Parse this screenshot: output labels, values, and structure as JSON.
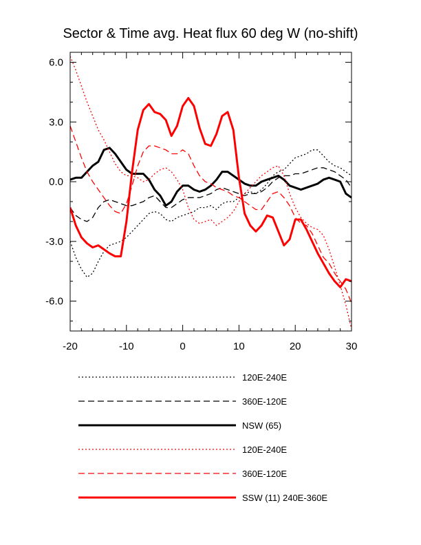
{
  "chart_data": {
    "type": "line",
    "title": "Sector & Time avg. Heat flux 60 deg W (no-shift)",
    "xlabel": "",
    "ylabel": "",
    "xlim": [
      -20,
      30
    ],
    "ylim": [
      -7.5,
      6.5
    ],
    "xticks": [
      -20,
      -10,
      0,
      10,
      20,
      30
    ],
    "xtick_labels": [
      "-20",
      "-10",
      "0",
      "10",
      "20",
      "30"
    ],
    "yticks": [
      6,
      3,
      0,
      -3,
      -6
    ],
    "ytick_labels": [
      "6.0",
      "3.0",
      "0.0",
      "-3.0",
      "-6.0"
    ],
    "grid": false,
    "legend_position": "bottom",
    "series": [
      {
        "name": "120E-240E",
        "color": "#000000",
        "dash": "dotted",
        "thick": false,
        "x": [
          -20,
          -19,
          -18,
          -17,
          -16,
          -15,
          -14,
          -13,
          -12,
          -11,
          -10,
          -9,
          -8,
          -7,
          -6,
          -5,
          -4,
          -3,
          -2,
          -1,
          0,
          1,
          2,
          3,
          4,
          5,
          6,
          7,
          8,
          9,
          10,
          11,
          12,
          13,
          14,
          15,
          16,
          17,
          18,
          19,
          20,
          21,
          22,
          23,
          24,
          25,
          26,
          27,
          28,
          29,
          30
        ],
        "y": [
          -3.0,
          -3.8,
          -4.4,
          -4.8,
          -4.6,
          -4.0,
          -3.5,
          -3.2,
          -3.1,
          -3.0,
          -2.8,
          -2.5,
          -2.2,
          -1.9,
          -1.6,
          -1.5,
          -1.6,
          -1.9,
          -2.0,
          -1.8,
          -1.7,
          -1.6,
          -1.5,
          -1.3,
          -1.3,
          -1.2,
          -1.4,
          -1.1,
          -1.0,
          -1.0,
          -0.8,
          -0.6,
          -0.5,
          -0.6,
          -0.4,
          -0.1,
          0.3,
          0.5,
          0.6,
          0.9,
          1.2,
          1.3,
          1.4,
          1.6,
          1.6,
          1.3,
          1.0,
          0.8,
          0.7,
          0.5,
          0.3
        ]
      },
      {
        "name": "360E-120E",
        "color": "#000000",
        "dash": "dashed",
        "thick": false,
        "x": [
          -20,
          -19,
          -18,
          -17,
          -16,
          -15,
          -14,
          -13,
          -12,
          -11,
          -10,
          -9,
          -8,
          -7,
          -6,
          -5,
          -4,
          -3,
          -2,
          -1,
          0,
          1,
          2,
          3,
          4,
          5,
          6,
          7,
          8,
          9,
          10,
          11,
          12,
          13,
          14,
          15,
          16,
          17,
          18,
          19,
          20,
          21,
          22,
          23,
          24,
          25,
          26,
          27,
          28,
          29,
          30
        ],
        "y": [
          -1.3,
          -1.7,
          -1.9,
          -2.0,
          -1.8,
          -1.3,
          -1.0,
          -0.9,
          -1.0,
          -1.1,
          -1.2,
          -1.2,
          -1.1,
          -1.0,
          -0.8,
          -0.7,
          -1.0,
          -1.3,
          -1.3,
          -1.1,
          -0.9,
          -0.8,
          -0.8,
          -0.8,
          -0.7,
          -0.6,
          -0.4,
          -0.3,
          -0.4,
          -0.5,
          -0.6,
          -0.7,
          -0.6,
          -0.6,
          -0.5,
          -0.3,
          0.0,
          0.2,
          0.3,
          0.3,
          0.4,
          0.4,
          0.5,
          0.6,
          0.7,
          0.7,
          0.6,
          0.5,
          0.3,
          0.1,
          -0.3
        ]
      },
      {
        "name": "NSW (65)",
        "color": "#000000",
        "dash": "solid",
        "thick": true,
        "x": [
          -20,
          -19,
          -18,
          -17,
          -16,
          -15,
          -14,
          -13,
          -12,
          -11,
          -10,
          -9,
          -8,
          -7,
          -6,
          -5,
          -4,
          -3,
          -2,
          -1,
          0,
          1,
          2,
          3,
          4,
          5,
          6,
          7,
          8,
          9,
          10,
          11,
          12,
          13,
          14,
          15,
          16,
          17,
          18,
          19,
          20,
          21,
          22,
          23,
          24,
          25,
          26,
          27,
          28,
          29,
          30
        ],
        "y": [
          0.1,
          0.2,
          0.2,
          0.5,
          0.8,
          1.0,
          1.6,
          1.7,
          1.4,
          1.0,
          0.6,
          0.4,
          0.4,
          0.4,
          0.1,
          -0.4,
          -0.7,
          -1.2,
          -1.0,
          -0.5,
          -0.2,
          -0.2,
          -0.4,
          -0.5,
          -0.4,
          -0.2,
          0.1,
          0.5,
          0.5,
          0.3,
          0.1,
          -0.1,
          -0.2,
          -0.2,
          0.0,
          0.1,
          0.2,
          0.3,
          0.1,
          -0.2,
          -0.3,
          -0.4,
          -0.3,
          -0.2,
          -0.1,
          0.1,
          0.2,
          0.1,
          0.0,
          -0.6,
          -0.8
        ]
      },
      {
        "name": "120E-240E",
        "color": "#ff0000",
        "dash": "dotted",
        "thick": false,
        "x": [
          -20,
          -19,
          -18,
          -17,
          -16,
          -15,
          -14,
          -13,
          -12,
          -11,
          -10,
          -9,
          -8,
          -7,
          -6,
          -5,
          -4,
          -3,
          -2,
          -1,
          0,
          1,
          2,
          3,
          4,
          5,
          6,
          7,
          8,
          9,
          10,
          11,
          12,
          13,
          14,
          15,
          16,
          17,
          18,
          19,
          20,
          21,
          22,
          23,
          24,
          25,
          26,
          27,
          28,
          29,
          30
        ],
        "y": [
          6.3,
          5.6,
          4.8,
          4.0,
          3.3,
          2.6,
          2.1,
          1.5,
          0.9,
          0.5,
          0.3,
          0.3,
          0.2,
          0.0,
          0.1,
          0.4,
          0.6,
          0.7,
          0.5,
          0.1,
          -0.4,
          -1.3,
          -1.9,
          -2.1,
          -2.0,
          -1.9,
          -2.2,
          -2.0,
          -1.8,
          -1.5,
          -1.0,
          -0.6,
          -0.3,
          0.0,
          0.3,
          0.5,
          0.7,
          0.8,
          0.3,
          -0.6,
          -1.3,
          -1.8,
          -2.1,
          -2.3,
          -2.4,
          -2.7,
          -3.4,
          -4.3,
          -5.2,
          -6.2,
          -7.4
        ]
      },
      {
        "name": "360E-120E",
        "color": "#ff0000",
        "dash": "dashed",
        "thick": false,
        "x": [
          -20,
          -19,
          -18,
          -17,
          -16,
          -15,
          -14,
          -13,
          -12,
          -11,
          -10,
          -9,
          -8,
          -7,
          -6,
          -5,
          -4,
          -3,
          -2,
          -1,
          0,
          1,
          2,
          3,
          4,
          5,
          6,
          7,
          8,
          9,
          10,
          11,
          12,
          13,
          14,
          15,
          16,
          17,
          18,
          19,
          20,
          21,
          22,
          23,
          24,
          25,
          26,
          27,
          28,
          29,
          30
        ],
        "y": [
          2.8,
          2.0,
          1.2,
          0.5,
          0.0,
          -0.4,
          -0.8,
          -1.2,
          -1.5,
          -1.6,
          -1.1,
          -0.2,
          0.8,
          1.5,
          1.8,
          1.8,
          1.7,
          1.6,
          1.4,
          1.4,
          1.6,
          1.4,
          0.8,
          0.3,
          0.0,
          -0.1,
          -0.3,
          -0.4,
          -0.5,
          -0.7,
          -0.8,
          -1.0,
          -1.2,
          -1.4,
          -1.4,
          -1.0,
          -0.6,
          -0.5,
          -0.8,
          -1.2,
          -1.8,
          -2.1,
          -2.2,
          -2.6,
          -3.2,
          -3.8,
          -4.1,
          -4.6,
          -5.0,
          -5.4,
          -6.1
        ]
      },
      {
        "name": "SSW (11) 240E-360E",
        "color": "#ff0000",
        "dash": "solid",
        "thick": true,
        "x": [
          -20,
          -19,
          -18,
          -17,
          -16,
          -15,
          -14,
          -13,
          -12,
          -11,
          -10,
          -9,
          -8,
          -7,
          -6,
          -5,
          -4,
          -3,
          -2,
          -1,
          0,
          1,
          2,
          3,
          4,
          5,
          6,
          7,
          8,
          9,
          10,
          11,
          12,
          13,
          14,
          15,
          16,
          17,
          18,
          19,
          20,
          21,
          22,
          23,
          24,
          25,
          26,
          27,
          28,
          29,
          30
        ],
        "y": [
          -1.3,
          -2.2,
          -2.8,
          -3.1,
          -3.3,
          -3.2,
          -3.4,
          -3.6,
          -3.75,
          -3.75,
          -2.0,
          0.5,
          2.6,
          3.6,
          3.9,
          3.5,
          3.4,
          3.1,
          2.3,
          2.8,
          3.8,
          4.2,
          3.8,
          2.7,
          1.9,
          1.8,
          2.4,
          3.3,
          3.5,
          2.6,
          0.2,
          -1.6,
          -2.2,
          -2.5,
          -2.2,
          -1.7,
          -1.8,
          -2.5,
          -3.2,
          -2.9,
          -1.9,
          -1.9,
          -2.4,
          -3.0,
          -3.6,
          -4.1,
          -4.6,
          -5.0,
          -5.3,
          -4.9,
          -5.0
        ]
      }
    ]
  }
}
